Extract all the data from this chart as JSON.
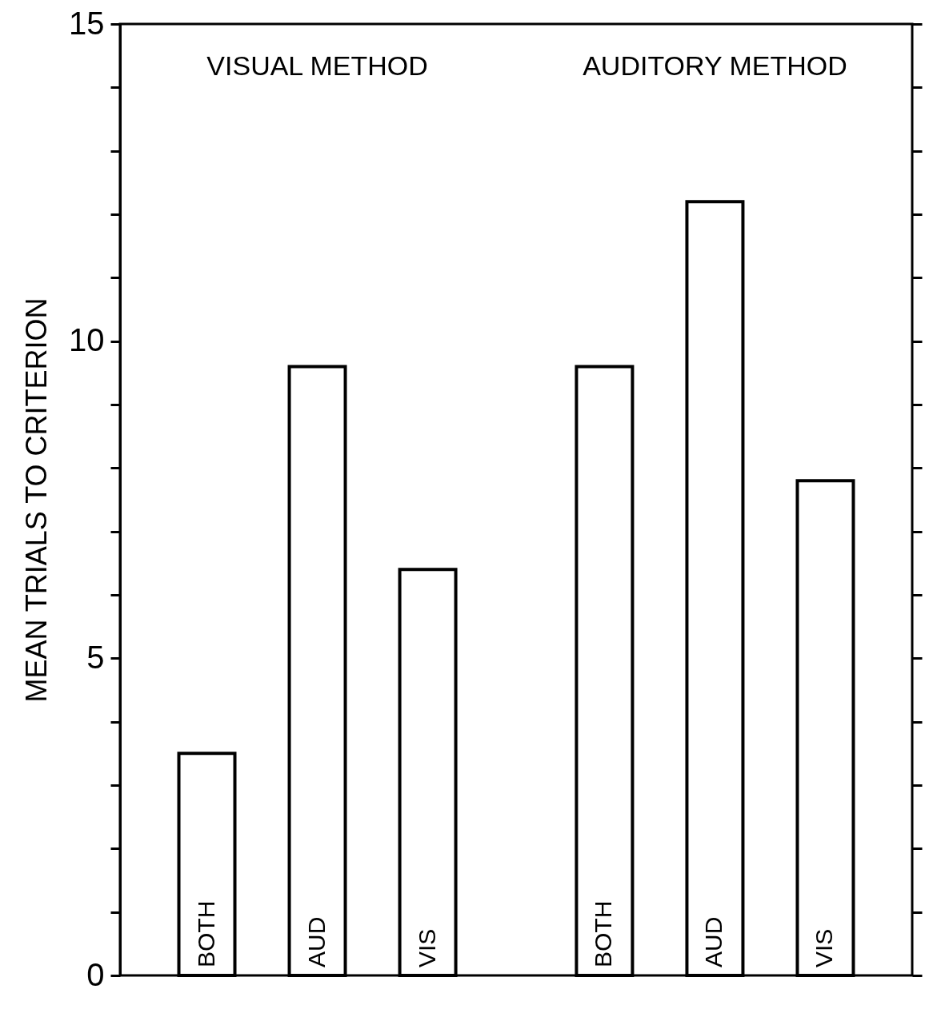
{
  "chart_data": {
    "type": "bar",
    "ylabel": "MEAN TRIALS TO CRITERION",
    "categories": [
      "BOTH",
      "AUD",
      "VIS",
      "BOTH",
      "AUD",
      "VIS"
    ],
    "values": [
      3.5,
      9.6,
      6.4,
      9.6,
      12.2,
      7.8
    ],
    "color": "#ffffff",
    "ylim": [
      0,
      15
    ],
    "yticks": [
      0,
      {
        "value": 1,
        "label": null
      },
      {
        "value": 2,
        "label": null
      },
      {
        "value": 3,
        "label": null
      },
      {
        "value": 4,
        "label": null
      },
      5,
      {
        "value": 6,
        "label": null
      },
      {
        "value": 7,
        "label": null
      },
      {
        "value": 8,
        "label": null
      },
      {
        "value": 9,
        "label": null
      },
      10,
      {
        "value": 11,
        "label": null
      },
      {
        "value": 12,
        "label": null
      },
      {
        "value": 13,
        "label": null
      },
      {
        "value": 14,
        "label": null
      },
      15
    ],
    "annotations": [
      "VISUAL METHOD",
      "AUDITORY METHOD"
    ],
    "grid": false
  }
}
